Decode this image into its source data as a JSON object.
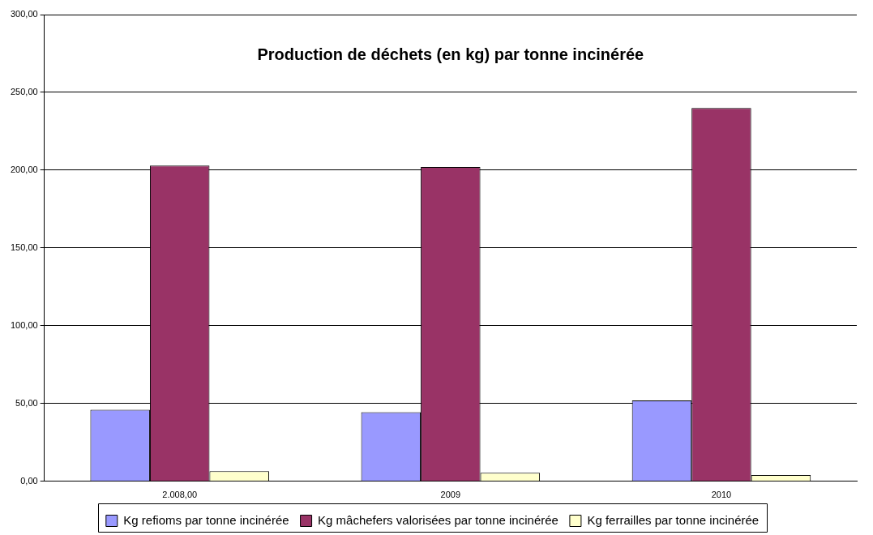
{
  "chart_data": {
    "type": "bar",
    "title": "Production de déchets (en kg) par tonne incinérée",
    "categories": [
      "2.008,00",
      "2009",
      "2010"
    ],
    "series": [
      {
        "name": "Kg refioms par tonne incinérée",
        "color": "#9999ff",
        "values": [
          46,
          44.5,
          52
        ]
      },
      {
        "name": "Kg mâchefers valorisées par tonne incinérée",
        "color": "#993366",
        "values": [
          203,
          202,
          240
        ]
      },
      {
        "name": "Kg ferrailles par tonne incinérée",
        "color": "#ffffcc",
        "values": [
          6.5,
          5.5,
          4
        ]
      }
    ],
    "ylim": [
      0,
      300
    ],
    "yticks": [
      {
        "value": 0,
        "label": "0,00"
      },
      {
        "value": 50,
        "label": "50,00"
      },
      {
        "value": 100,
        "label": "100,00"
      },
      {
        "value": 150,
        "label": "150,00"
      },
      {
        "value": 200,
        "label": "200,00"
      },
      {
        "value": 250,
        "label": "250,00"
      },
      {
        "value": 300,
        "label": "300,00"
      }
    ],
    "grid": "y",
    "legend": "bottom"
  }
}
